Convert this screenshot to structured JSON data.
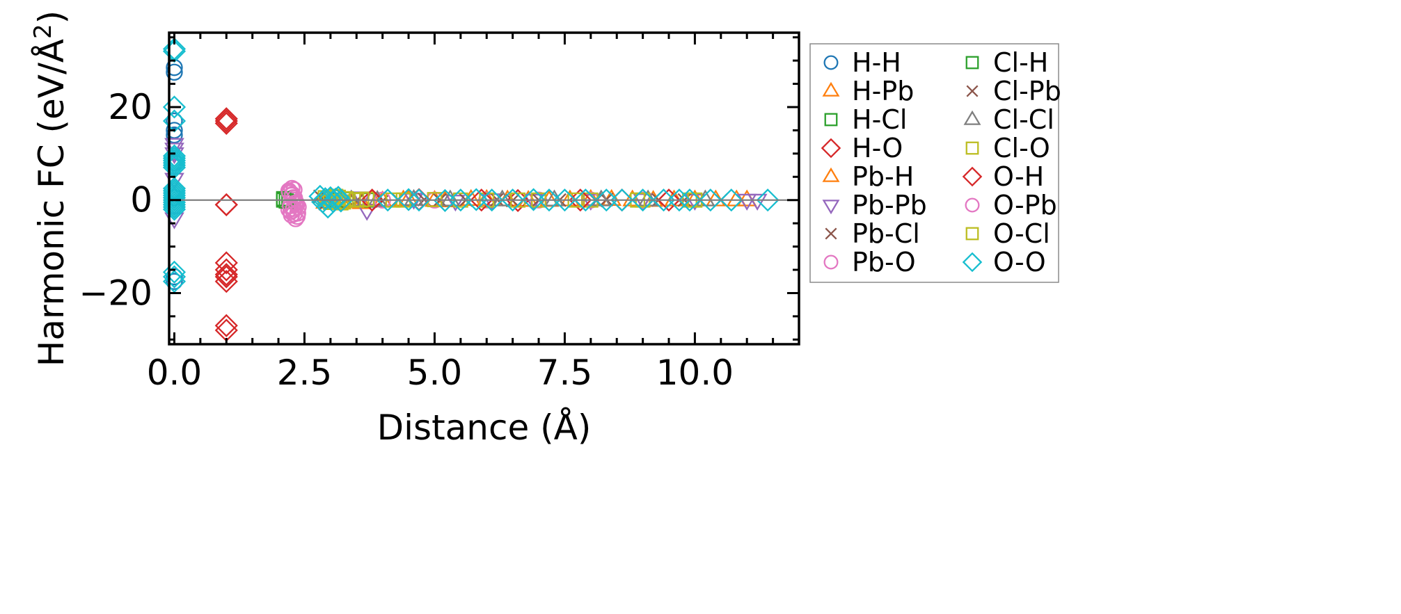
{
  "chart_data": {
    "type": "scatter",
    "xlabel": "Distance (Å)",
    "ylabel_main": "Harmonic FC (eV/Å",
    "ylabel_sup": "2",
    "ylabel_close": ")",
    "xlim": [
      -0.1,
      12.0
    ],
    "ylim": [
      -31,
      36
    ],
    "xticks": [
      0.0,
      2.5,
      5.0,
      7.5,
      10.0
    ],
    "xtick_labels": [
      "0.0",
      "2.5",
      "5.0",
      "7.5",
      "10.0"
    ],
    "yticks": [
      -20,
      0,
      20
    ],
    "ytick_labels": [
      "−20",
      "0",
      "20"
    ],
    "zero_line": true,
    "grid": false,
    "legend_position": "outside-right",
    "series": [
      {
        "name": "H-H",
        "marker": "circle",
        "color": "#1f77b4",
        "x": [
          0.0,
          0.0,
          0.0,
          0.0,
          0.0,
          0.0,
          0.0,
          0.0,
          0.0
        ],
        "y": [
          28.5,
          27.5,
          17.0,
          15.0,
          14.0,
          -16.5,
          -17.5,
          8.0,
          0.5
        ]
      },
      {
        "name": "H-Pb",
        "marker": "triangle-up",
        "color": "#ff7f0e",
        "x": [
          2.9,
          3.2,
          3.6,
          4.0,
          4.5,
          5.2,
          6.0,
          6.8,
          7.6,
          8.4,
          9.2,
          10.0,
          10.8
        ],
        "y": [
          -0.5,
          -0.3,
          -0.6,
          -0.2,
          0.1,
          -0.2,
          0.1,
          -0.1,
          0.0,
          0.1,
          -0.1,
          0.0,
          0.0
        ]
      },
      {
        "name": "H-Cl",
        "marker": "square",
        "color": "#2ca02c",
        "x": [
          2.1,
          2.2,
          3.0,
          3.3,
          3.7
        ],
        "y": [
          0.0,
          -0.3,
          -0.5,
          0.2,
          0.0
        ]
      },
      {
        "name": "H-O",
        "marker": "diamond",
        "color": "#d62728",
        "x": [
          1.0,
          1.0,
          1.0,
          1.0,
          1.0,
          1.0,
          1.0,
          1.0,
          1.0
        ],
        "y": [
          17.5,
          16.5,
          -1.0,
          -13.5,
          -15.0,
          -16.5,
          -17.5,
          -27.0,
          -28.0
        ]
      },
      {
        "name": "Pb-H",
        "marker": "triangle-up",
        "color": "#ff7f0e",
        "x": [
          3.0,
          3.4,
          3.8,
          4.4,
          5.0,
          5.7,
          6.4,
          7.2,
          8.0,
          8.8,
          9.6,
          10.4,
          11.0
        ],
        "y": [
          0.3,
          -0.4,
          0.2,
          0.0,
          -0.1,
          0.1,
          0.0,
          -0.1,
          0.1,
          0.0,
          0.0,
          0.0,
          0.0
        ]
      },
      {
        "name": "Pb-Pb",
        "marker": "triangle-down",
        "color": "#9467bd",
        "x": [
          0.0,
          0.0,
          0.0,
          0.0,
          0.0,
          0.0,
          3.6,
          3.7,
          4.6,
          5.4,
          6.1,
          6.9,
          8.0,
          9.0,
          10.0,
          11.0,
          11.2
        ],
        "y": [
          12.0,
          11.0,
          10.0,
          7.5,
          4.5,
          -4.0,
          0.5,
          -2.2,
          0.2,
          -0.2,
          0.1,
          0.0,
          0.0,
          0.1,
          0.0,
          0.0,
          0.0
        ]
      },
      {
        "name": "Pb-Cl",
        "marker": "x",
        "color": "#8c564b",
        "x": [
          2.8,
          3.0,
          3.3,
          4.0,
          4.8,
          5.6,
          6.5,
          7.4,
          8.3,
          9.2,
          9.7,
          10.5
        ],
        "y": [
          0.8,
          -0.6,
          0.3,
          -0.2,
          0.1,
          0.0,
          -0.1,
          0.0,
          0.1,
          0.0,
          0.0,
          0.0
        ]
      },
      {
        "name": "Pb-O",
        "marker": "circle",
        "color": "#e377c2",
        "x": [
          2.2,
          2.22,
          2.25,
          2.28,
          2.3,
          2.32,
          2.35,
          2.38,
          2.2,
          2.24,
          2.3,
          2.36,
          2.26,
          2.33,
          4.0,
          5.0,
          6.0,
          7.0,
          8.0,
          9.0
        ],
        "y": [
          2.0,
          1.5,
          1.0,
          0.5,
          0.0,
          -0.5,
          -1.0,
          -1.5,
          -2.0,
          -2.5,
          -3.0,
          -3.5,
          2.5,
          -4.0,
          0.0,
          0.0,
          0.0,
          0.0,
          0.0,
          0.0
        ]
      },
      {
        "name": "Cl-H",
        "marker": "square",
        "color": "#2ca02c",
        "x": [
          2.1,
          2.15,
          3.1,
          3.5
        ],
        "y": [
          0.3,
          -0.2,
          0.0,
          0.1
        ]
      },
      {
        "name": "Cl-Pb",
        "marker": "x",
        "color": "#8c564b",
        "x": [
          2.9,
          3.1,
          3.5,
          4.3,
          5.1,
          6.2,
          7.0,
          8.1,
          9.3,
          9.8
        ],
        "y": [
          -0.8,
          0.6,
          -0.2,
          0.1,
          0.0,
          0.1,
          0.0,
          -0.1,
          0.0,
          0.0
        ]
      },
      {
        "name": "Cl-Cl",
        "marker": "triangle-up",
        "color": "#7f7f7f",
        "x": [
          3.4,
          3.9,
          4.6,
          5.3,
          6.3,
          7.3,
          8.2,
          9.1,
          10.2
        ],
        "y": [
          0.0,
          -0.1,
          0.1,
          0.0,
          0.0,
          0.0,
          0.0,
          0.0,
          0.0
        ]
      },
      {
        "name": "Cl-O",
        "marker": "square",
        "color": "#bcbd22",
        "x": [
          2.9,
          3.0,
          3.1,
          3.2,
          3.3,
          3.5,
          3.7,
          4.2,
          5.0,
          6.0,
          7.0,
          8.0,
          9.0,
          10.0
        ],
        "y": [
          0.5,
          -0.5,
          0.8,
          -0.6,
          0.3,
          0.0,
          0.2,
          0.0,
          0.1,
          0.0,
          0.0,
          0.0,
          0.0,
          0.0
        ]
      },
      {
        "name": "O-H",
        "marker": "diamond",
        "color": "#d62728",
        "x": [
          1.0,
          1.0,
          1.0,
          3.8,
          4.7,
          5.9,
          6.6,
          7.8,
          8.6,
          9.5
        ],
        "y": [
          17.0,
          -1.0,
          -16.0,
          0.0,
          0.1,
          0.0,
          -0.1,
          0.0,
          0.0,
          0.0
        ]
      },
      {
        "name": "O-Pb",
        "marker": "circle",
        "color": "#e377c2",
        "x": [
          2.21,
          2.27,
          2.31,
          2.34,
          2.23,
          2.29,
          2.37,
          2.25,
          2.3,
          2.28
        ],
        "y": [
          1.8,
          1.2,
          0.4,
          -0.6,
          -1.2,
          -1.8,
          -2.8,
          -3.2,
          2.2,
          -2.2
        ]
      },
      {
        "name": "O-Cl",
        "marker": "square",
        "color": "#bcbd22",
        "x": [
          2.95,
          3.05,
          3.15,
          3.25,
          3.6,
          4.4,
          5.5,
          6.6,
          7.7,
          8.9,
          9.9
        ],
        "y": [
          0.3,
          -0.3,
          0.6,
          -0.4,
          0.1,
          0.0,
          0.0,
          0.0,
          0.0,
          0.0,
          0.0
        ]
      },
      {
        "name": "O-O",
        "marker": "diamond",
        "color": "#17becf",
        "x": [
          0.0,
          0.0,
          0.0,
          0.0,
          0.0,
          0.0,
          0.0,
          0.0,
          0.0,
          0.0,
          0.0,
          0.0,
          0.0,
          0.0,
          0.0,
          0.0,
          0.0,
          0.0,
          0.0,
          0.0,
          0.0,
          0.0,
          0.0,
          2.8,
          2.85,
          2.9,
          2.95,
          3.0,
          3.05,
          3.1,
          3.15,
          3.2,
          4.1,
          4.5,
          4.7,
          5.2,
          5.5,
          5.8,
          6.1,
          6.5,
          6.9,
          7.2,
          7.5,
          7.9,
          8.3,
          8.6,
          9.0,
          9.4,
          9.7,
          9.9,
          10.3,
          10.7,
          11.4
        ],
        "y": [
          32.5,
          32.0,
          20.0,
          17.0,
          9.5,
          9.0,
          8.5,
          8.0,
          7.5,
          7.0,
          2.5,
          2.0,
          1.5,
          1.0,
          0.5,
          0.0,
          -0.5,
          -1.0,
          -1.5,
          -2.0,
          -15.5,
          -16.5,
          -17.5,
          0.8,
          -0.4,
          0.3,
          -1.5,
          0.5,
          -0.3,
          0.2,
          0.6,
          -0.2,
          0.0,
          0.1,
          0.0,
          -0.1,
          0.0,
          0.1,
          0.0,
          0.0,
          0.1,
          0.0,
          0.0,
          0.0,
          0.0,
          0.0,
          0.0,
          0.0,
          0.0,
          0.0,
          0.0,
          0.0,
          0.0
        ]
      }
    ]
  }
}
